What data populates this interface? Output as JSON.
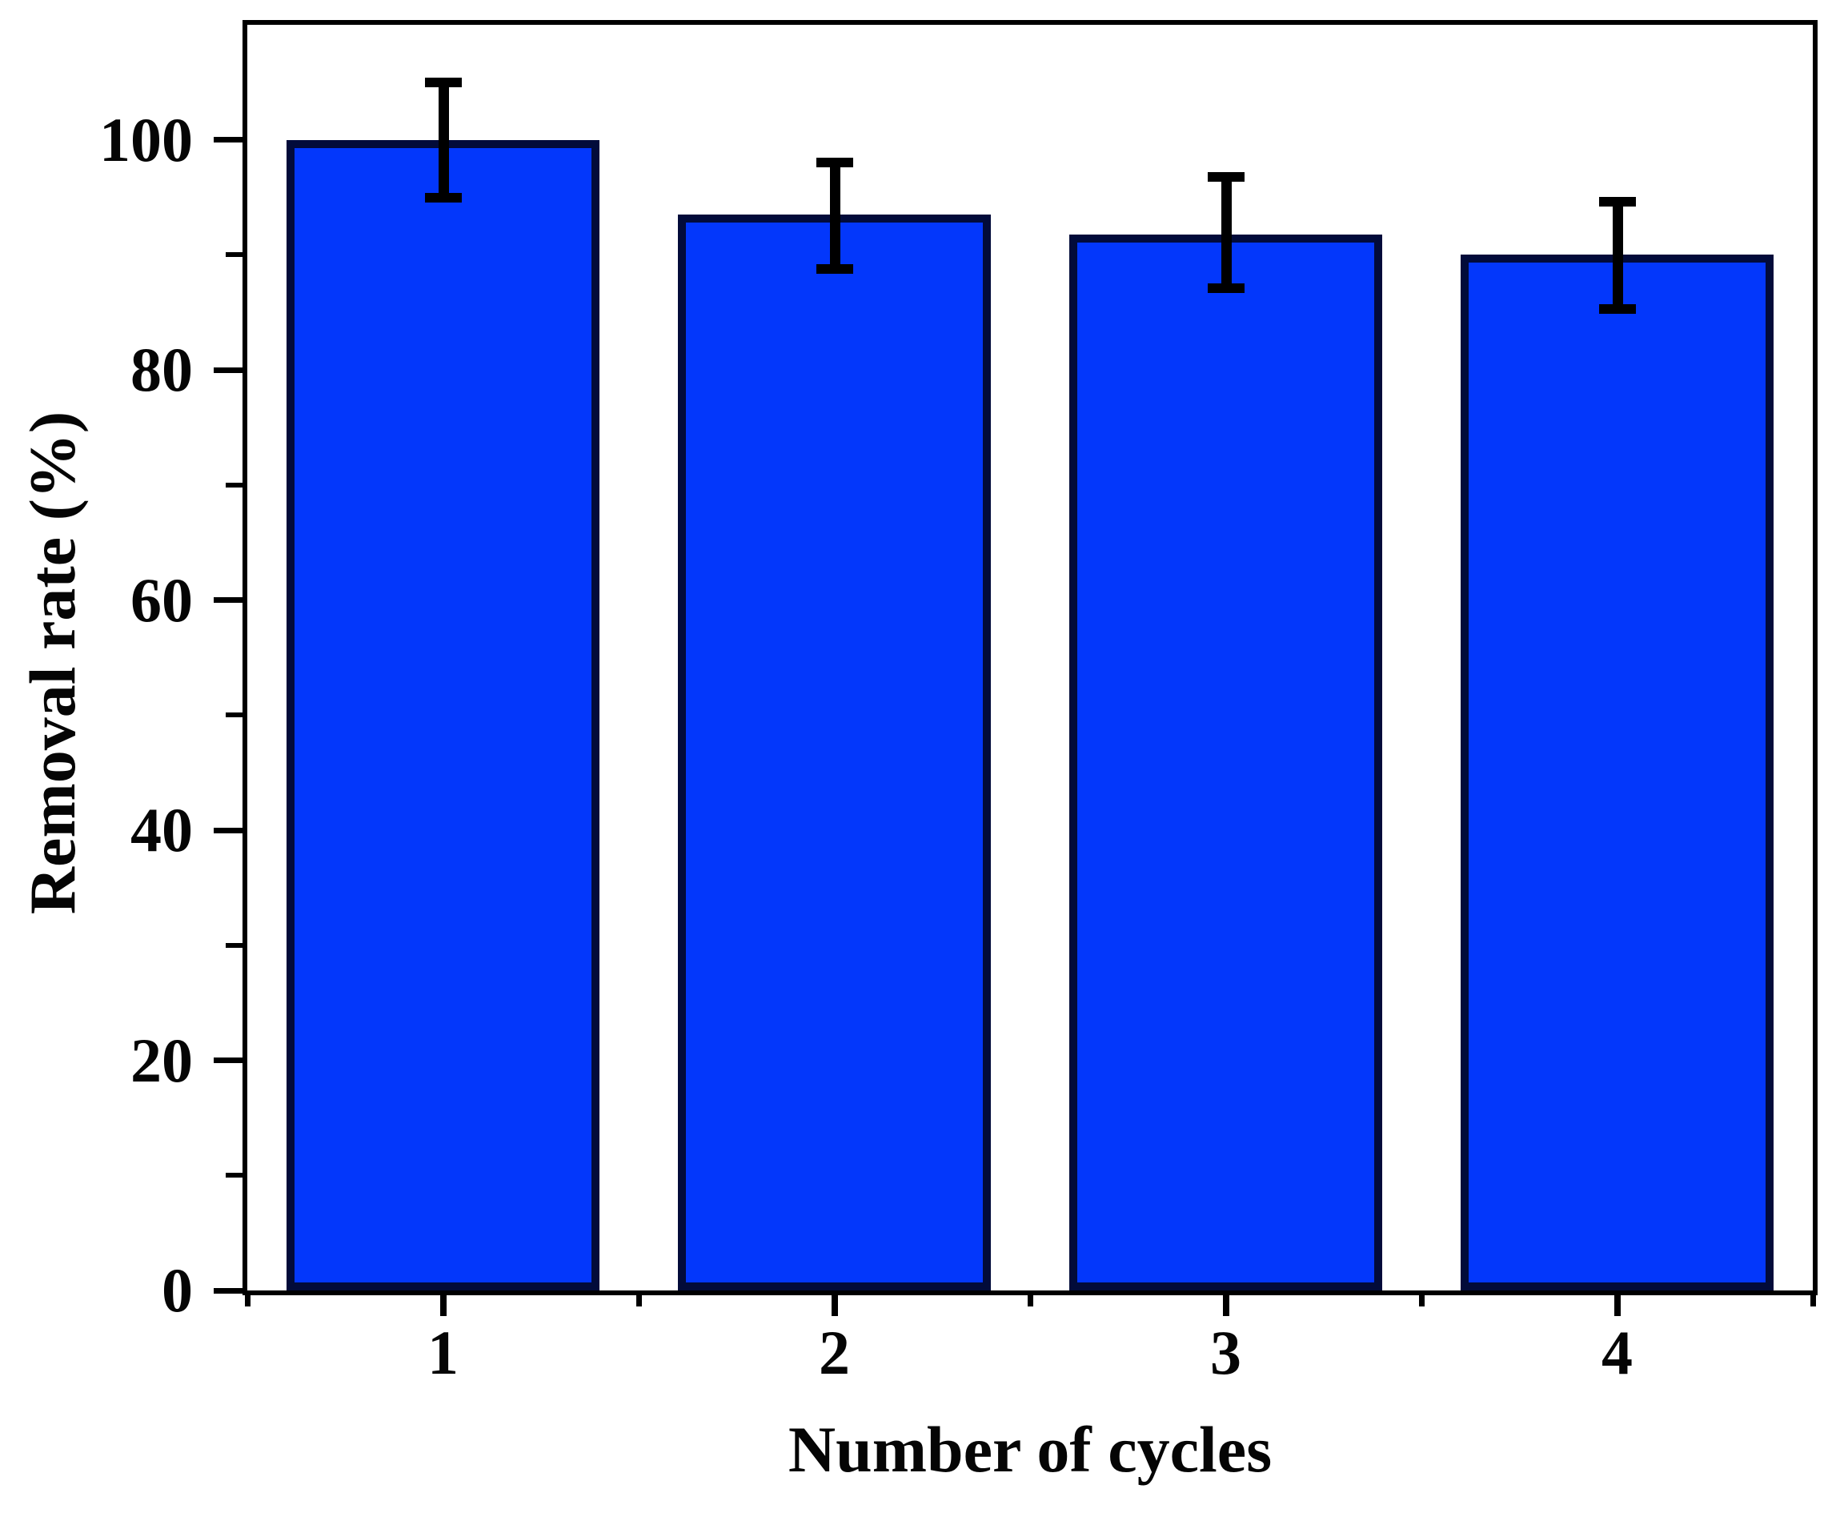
{
  "figure": {
    "background": "#FFFFFF"
  },
  "chart_data": {
    "type": "bar",
    "title": "",
    "xlabel": "Number of cycles",
    "ylabel": "Removal rate (%)",
    "categories": [
      "1",
      "2",
      "3",
      "4"
    ],
    "values": [
      100,
      93.5,
      91.8,
      90
    ],
    "error_up": [
      5.0,
      4.5,
      5.0,
      4.6
    ],
    "error_down": [
      5.0,
      4.7,
      4.7,
      4.7
    ],
    "xlim": [
      0.5,
      4.5
    ],
    "ylim": [
      0,
      110
    ],
    "y_major_ticks": [
      0,
      20,
      40,
      60,
      80,
      100
    ],
    "y_tick_labels": [
      "0",
      "20",
      "40",
      "60",
      "80",
      "100"
    ],
    "y_minor_ticks": [
      10,
      30,
      50,
      70,
      90
    ],
    "x_major_ticks": [
      1,
      2,
      3,
      4
    ],
    "x_minor_ticks": [
      0.5,
      1.5,
      2.5,
      3.5,
      4.5
    ],
    "bar_width_units": 0.8,
    "grid": false,
    "legend": false,
    "colors": {
      "bar_fill": "#0337FB",
      "bar_edge": "#020B3A",
      "error_bar": "#000000",
      "axis": "#000000",
      "text": "#050505",
      "background": "#FFFFFF"
    }
  }
}
